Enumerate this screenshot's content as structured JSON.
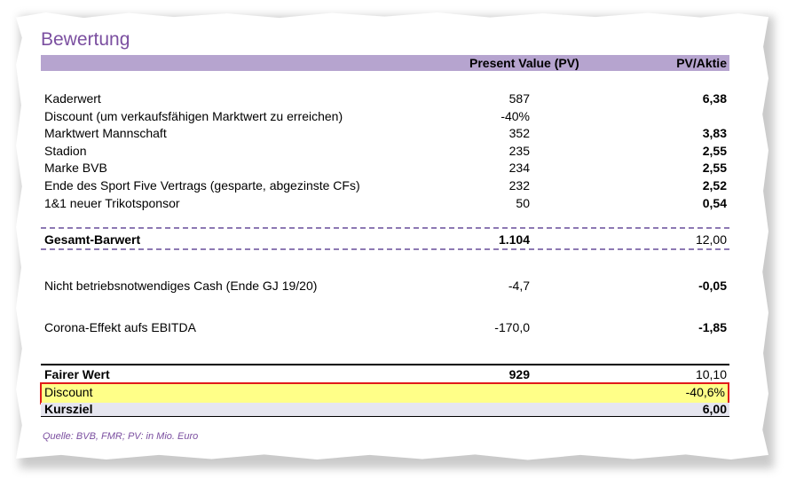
{
  "title": "Bewertung",
  "header": {
    "pv": "Present Value (PV)",
    "per_share": "PV/Aktie"
  },
  "rows": [
    {
      "label": "Kaderwert",
      "pv": "587",
      "ps": "6,38"
    },
    {
      "label": "Discount (um verkaufsfähigen Marktwert zu erreichen)",
      "pv": "-40%",
      "ps": ""
    },
    {
      "label": "Marktwert Mannschaft",
      "pv": "352",
      "ps": "3,83"
    },
    {
      "label": "Stadion",
      "pv": "235",
      "ps": "2,55"
    },
    {
      "label": "Marke BVB",
      "pv": "234",
      "ps": "2,55"
    },
    {
      "label": "Ende des Sport Five Vertrags (gesparte, abgezinste CFs)",
      "pv": "232",
      "ps": "2,52"
    },
    {
      "label": "1&1 neuer Trikotsponsor",
      "pv": "50",
      "ps": "0,54"
    }
  ],
  "gesamt": {
    "label": "Gesamt-Barwert",
    "pv": "1.104",
    "ps": "12,00"
  },
  "cash": {
    "label": "Nicht betriebsnotwendiges Cash (Ende GJ 19/20)",
    "pv": "-4,7",
    "ps": "-0,05"
  },
  "corona": {
    "label": "Corona-Effekt aufs EBITDA",
    "pv": "-170,0",
    "ps": "-1,85"
  },
  "fairer": {
    "label": "Fairer Wert",
    "pv": "929",
    "ps": "10,10"
  },
  "discount": {
    "label": "Discount",
    "ps": "-40,6%"
  },
  "kursziel": {
    "label": "Kursziel",
    "ps": "6,00"
  },
  "source": "Quelle: BVB, FMR; PV: in Mio. Euro",
  "colors": {
    "title": "#7b4fa0",
    "header_band": "#b6a4cf",
    "highlight": "#ffff88",
    "highlight_border": "#e01b1b"
  }
}
